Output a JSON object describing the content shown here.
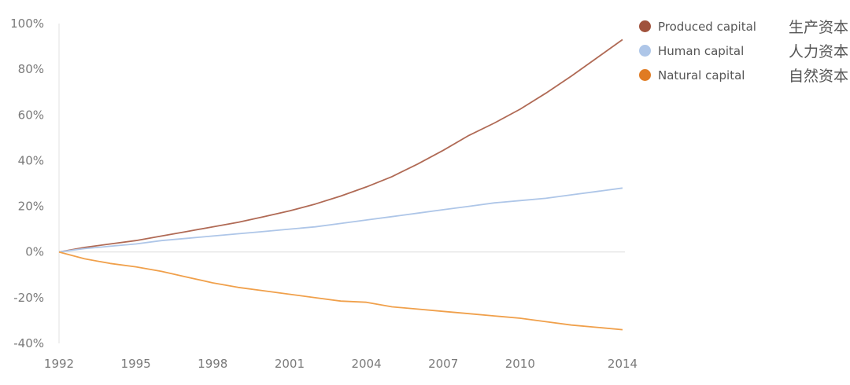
{
  "chart_data": {
    "type": "line",
    "x": [
      1992,
      1993,
      1994,
      1995,
      1996,
      1997,
      1998,
      1999,
      2000,
      2001,
      2002,
      2003,
      2004,
      2005,
      2006,
      2007,
      2008,
      2009,
      2010,
      2011,
      2012,
      2013,
      2014
    ],
    "x_ticks": [
      "1992",
      "1995",
      "1998",
      "2001",
      "2004",
      "2007",
      "2010",
      "2014"
    ],
    "y_ticks": [
      "100%",
      "80%",
      "60%",
      "40%",
      "20%",
      "0%",
      "-20%",
      "-40%"
    ],
    "ylim": [
      -40,
      100
    ],
    "xlim": [
      1992,
      2014
    ],
    "y_unit": "%",
    "legend_position": "top-right",
    "series": [
      {
        "name": "Produced capital",
        "name_cn": "生产资本",
        "color": "#b06a55",
        "values": [
          0,
          2,
          3.5,
          5,
          7,
          9,
          11,
          13,
          15.5,
          18,
          21,
          24.5,
          28.5,
          33,
          38.5,
          44.5,
          51,
          56.5,
          62.5,
          69.5,
          77,
          85,
          93
        ]
      },
      {
        "name": "Human capital",
        "name_cn": "人力资本",
        "color": "#aec6e8",
        "values": [
          0,
          1.5,
          2.5,
          3.5,
          5,
          6,
          7,
          8,
          9,
          10,
          11,
          12.5,
          14,
          15.5,
          17,
          18.5,
          20,
          21.5,
          22.5,
          23.5,
          25,
          26.5,
          28
        ]
      },
      {
        "name": "Natural capital",
        "name_cn": "自然资本",
        "color": "#f0a04b",
        "values": [
          0,
          -3,
          -5,
          -6.5,
          -8.5,
          -11,
          -13.5,
          -15.5,
          -17,
          -18.5,
          -20,
          -21.5,
          -22,
          -24,
          -25,
          -26,
          -27,
          -28,
          -29,
          -30.5,
          -32,
          -33,
          -34
        ]
      }
    ],
    "legend_dot_colors": [
      "#a0523c",
      "#aec6e8",
      "#e07b22"
    ],
    "grid": false,
    "title": "",
    "xlabel": "",
    "ylabel": ""
  }
}
